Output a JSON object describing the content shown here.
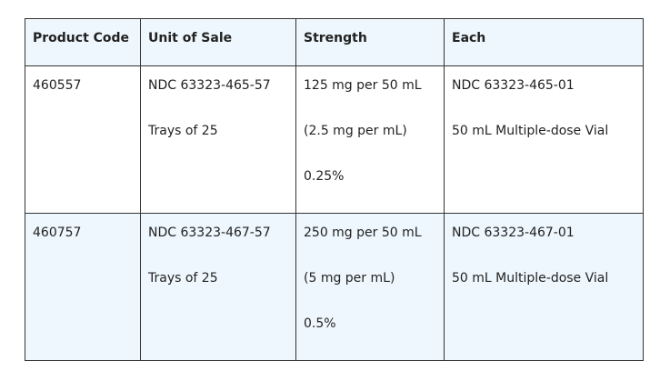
{
  "table": {
    "header": [
      "Product Code",
      "Unit of Sale",
      "Strength",
      "Each"
    ],
    "rows": [
      [
        [
          "460557"
        ],
        [
          "NDC 63323-465-57",
          "Trays of 25"
        ],
        [
          "125 mg per 50 mL",
          "(2.5 mg per mL)",
          "0.25%"
        ],
        [
          "NDC 63323-465-01",
          "50 mL Multiple-dose Vial"
        ]
      ],
      [
        [
          "460757"
        ],
        [
          "NDC 63323-467-57",
          "Trays of 25"
        ],
        [
          "250 mg per 50 mL",
          "(5 mg per mL)",
          "0.5%"
        ],
        [
          "NDC 63323-467-01",
          "50 mL Multiple-dose Vial"
        ]
      ]
    ]
  }
}
